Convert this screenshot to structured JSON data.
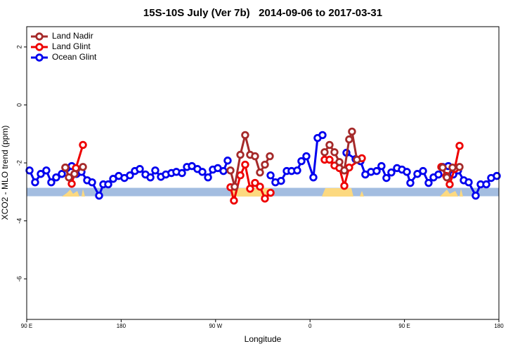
{
  "chart_data": {
    "type": "line",
    "title": "15S-10S July (Ver 7b)   2014-09-06 to 2017-03-31",
    "x_label": "Longitude",
    "y_label": "XCO2 - MLO trend (ppm)",
    "xlim": [
      90,
      540
    ],
    "xticks": [
      {
        "value": 90,
        "label": "90 E"
      },
      180,
      {
        "value": 270,
        "label": "90 W"
      },
      {
        "value": 360,
        "label": "0"
      },
      {
        "value": 450,
        "label": "90 E"
      },
      {
        "value": 540,
        "label": "180"
      }
    ],
    "ylim": [
      -7.4,
      2.7
    ],
    "yticks": [
      2,
      0,
      -2,
      -4,
      -6
    ],
    "band": [
      -3.15,
      -2.86
    ],
    "band_color": "#a3bde0",
    "legend": "top-left",
    "series": [
      {
        "name": "Land Nadir",
        "color": "#a52a2a",
        "x": [
          126.8,
          130.2,
          135.5,
          143.6,
          250,
          284.2,
          288.2,
          293.6,
          298.2,
          302.9,
          307.6,
          312.3,
          317.0,
          321.7,
          340,
          373.9,
          378.6,
          383.3,
          388.0,
          392.7,
          397.3,
          400.0,
          404.7,
          450,
          486.4,
          490.4,
          495.8,
          502.5
        ],
        "values": [
          -2.16,
          -2.5,
          -2.38,
          -2.14,
          null,
          -2.26,
          -2.82,
          -1.72,
          -1.04,
          -1.72,
          -1.77,
          -2.33,
          -2.06,
          -1.77,
          null,
          -1.63,
          -1.38,
          -1.63,
          -1.97,
          -2.26,
          -1.19,
          -0.92,
          -1.89,
          null,
          -2.16,
          -2.5,
          -2.16,
          -2.14
        ]
      },
      {
        "name": "Land Glint",
        "color": "#ee0000",
        "x": [
          126.8,
          132.9,
          136.9,
          143.6,
          250,
          284.2,
          287.5,
          293.6,
          298.2,
          302.9,
          307.6,
          312.3,
          317.0,
          322.4,
          340,
          373.9,
          378.6,
          383.3,
          388.0,
          392.7,
          397.3,
          409.4,
          450,
          485.1,
          489.8,
          493.1,
          497.8,
          502.5
        ],
        "values": [
          -2.16,
          -2.72,
          -2.18,
          -1.38,
          null,
          -2.84,
          -3.3,
          -2.43,
          -2.06,
          -2.89,
          -2.69,
          -2.82,
          -3.23,
          -3.03,
          null,
          -1.89,
          -1.89,
          -2.09,
          -2.18,
          -2.79,
          -2.16,
          -1.84,
          null,
          -2.14,
          -2.45,
          -2.74,
          -2.21,
          -1.41
        ]
      },
      {
        "name": "Ocean Glint",
        "color": "#0000ee",
        "x": [
          92.7,
          98.0,
          103.4,
          108.7,
          113.4,
          118.1,
          123.5,
          128.2,
          132.9,
          137.5,
          142.2,
          147.6,
          152.3,
          159.0,
          163.0,
          167.7,
          172.4,
          177.7,
          183.1,
          188.4,
          193.1,
          197.8,
          203.2,
          207.9,
          212.5,
          217.9,
          222.6,
          227.9,
          232.6,
          238.0,
          242.7,
          247.4,
          252.7,
          257.4,
          262.8,
          267.4,
          272.1,
          277.5,
          281.5,
          300,
          322.4,
          327.0,
          332.4,
          337.8,
          342.4,
          347.8,
          351.8,
          356.5,
          363.2,
          367.2,
          371.9,
          379.3,
          394.7,
          403.4,
          408.1,
          412.7,
          418.1,
          423.5,
          428.1,
          432.8,
          437.5,
          442.9,
          447.6,
          452.3,
          455.6,
          462.3,
          467.7,
          473.0,
          477.7,
          482.4,
          486.4,
          491.8,
          496.5,
          501.1,
          506.5,
          511.2,
          517.9,
          522.6,
          528.0,
          532.6,
          538.0
        ],
        "values": [
          -2.26,
          -2.67,
          -2.38,
          -2.26,
          -2.67,
          -2.5,
          -2.38,
          -2.18,
          -2.11,
          -2.38,
          -2.31,
          -2.6,
          -2.67,
          -3.13,
          -2.74,
          -2.74,
          -2.55,
          -2.45,
          -2.52,
          -2.43,
          -2.28,
          -2.21,
          -2.4,
          -2.5,
          -2.26,
          -2.48,
          -2.4,
          -2.35,
          -2.31,
          -2.35,
          -2.14,
          -2.11,
          -2.21,
          -2.31,
          -2.5,
          -2.23,
          -2.18,
          -2.28,
          -1.92,
          null,
          -2.43,
          -2.67,
          -2.62,
          -2.28,
          -2.28,
          -2.26,
          -1.94,
          -1.77,
          -2.5,
          -1.14,
          -1.04,
          null,
          -1.65,
          -1.87,
          -1.94,
          -2.4,
          -2.31,
          -2.28,
          -2.11,
          -2.52,
          -2.33,
          -2.18,
          -2.23,
          -2.31,
          -2.69,
          -2.38,
          -2.28,
          -2.69,
          -2.5,
          -2.4,
          -2.14,
          -2.11,
          -2.4,
          -2.26,
          -2.6,
          -2.67,
          -3.13,
          -2.74,
          -2.74,
          -2.52,
          -2.45
        ]
      }
    ]
  }
}
